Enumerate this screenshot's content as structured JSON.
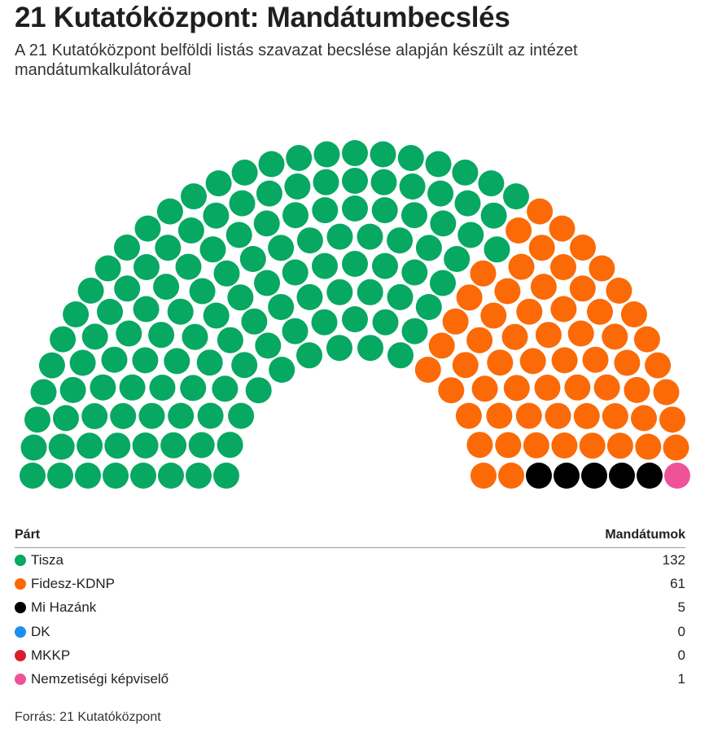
{
  "header": {
    "title": "21 Kutatóközpont: Mandátumbecslés",
    "subtitle": "A 21 Kutatóközpont belföldi listás szavazat becslése alapján készült az intézet mandátumkalkulátorával"
  },
  "chart_data": {
    "type": "parliament",
    "total_seats": 199,
    "series": [
      {
        "name": "Tisza",
        "values": [
          132
        ],
        "color": "#07a862"
      },
      {
        "name": "Fidesz-KDNP",
        "values": [
          61
        ],
        "color": "#fb6a07"
      },
      {
        "name": "Mi Hazánk",
        "values": [
          5
        ],
        "color": "#000000"
      },
      {
        "name": "DK",
        "values": [
          0
        ],
        "color": "#1a8ff0"
      },
      {
        "name": "MKKP",
        "values": [
          0
        ],
        "color": "#d91f2c"
      },
      {
        "name": "Nemzetiségi képviselő",
        "values": [
          1
        ],
        "color": "#f0529a"
      }
    ]
  },
  "legend": {
    "col_party": "Párt",
    "col_seats": "Mandátumok",
    "rows": [
      {
        "name": "Tisza",
        "seats": "132",
        "color": "#07a862"
      },
      {
        "name": "Fidesz-KDNP",
        "seats": "61",
        "color": "#fb6a07"
      },
      {
        "name": "Mi Hazánk",
        "seats": "5",
        "color": "#000000"
      },
      {
        "name": "DK",
        "seats": "0",
        "color": "#1a8ff0"
      },
      {
        "name": "MKKP",
        "seats": "0",
        "color": "#d91f2c"
      },
      {
        "name": "Nemzetiségi képviselő",
        "seats": "1",
        "color": "#f0529a"
      }
    ]
  },
  "footer": {
    "source": "Forrás: 21 Kutatóközpont"
  }
}
